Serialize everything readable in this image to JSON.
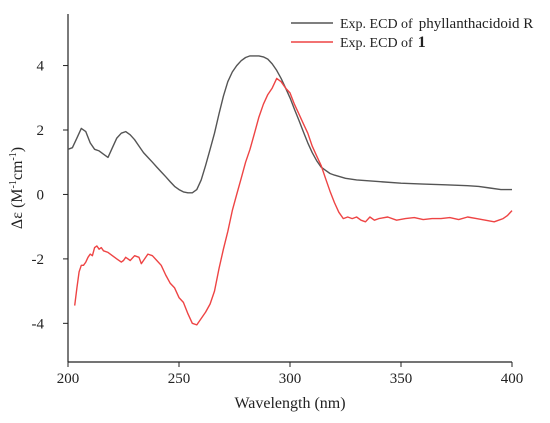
{
  "chart_data": {
    "type": "line",
    "xlabel": "Wavelength (nm)",
    "ylabel": {
      "prefix": "Δε (M",
      "sup1": "-1",
      "mid": "cm",
      "sup2": "-1",
      "suffix": ")"
    },
    "xlim": [
      200,
      400
    ],
    "ylim": [
      -5.2,
      5.6
    ],
    "x_ticks": [
      200,
      250,
      300,
      350,
      400
    ],
    "y_ticks": [
      -4,
      -2,
      0,
      2,
      4
    ],
    "grid": false,
    "legend_position": "top-right",
    "series": [
      {
        "legend_prefix": "Exp. ECD of",
        "legend_name": "phyllanthacidoid R",
        "color": "#555555",
        "points": [
          [
            200,
            1.4
          ],
          [
            202,
            1.45
          ],
          [
            204,
            1.75
          ],
          [
            206,
            2.05
          ],
          [
            208,
            1.95
          ],
          [
            210,
            1.6
          ],
          [
            212,
            1.4
          ],
          [
            214,
            1.35
          ],
          [
            216,
            1.25
          ],
          [
            218,
            1.15
          ],
          [
            220,
            1.45
          ],
          [
            222,
            1.75
          ],
          [
            224,
            1.9
          ],
          [
            226,
            1.95
          ],
          [
            228,
            1.85
          ],
          [
            230,
            1.7
          ],
          [
            232,
            1.5
          ],
          [
            234,
            1.3
          ],
          [
            236,
            1.15
          ],
          [
            238,
            1.0
          ],
          [
            240,
            0.85
          ],
          [
            242,
            0.7
          ],
          [
            244,
            0.55
          ],
          [
            246,
            0.4
          ],
          [
            248,
            0.25
          ],
          [
            250,
            0.15
          ],
          [
            252,
            0.08
          ],
          [
            254,
            0.05
          ],
          [
            256,
            0.05
          ],
          [
            258,
            0.15
          ],
          [
            260,
            0.45
          ],
          [
            262,
            0.9
          ],
          [
            264,
            1.4
          ],
          [
            266,
            1.9
          ],
          [
            268,
            2.5
          ],
          [
            270,
            3.05
          ],
          [
            272,
            3.5
          ],
          [
            274,
            3.8
          ],
          [
            276,
            4.0
          ],
          [
            278,
            4.15
          ],
          [
            280,
            4.25
          ],
          [
            282,
            4.3
          ],
          [
            284,
            4.3
          ],
          [
            286,
            4.3
          ],
          [
            288,
            4.27
          ],
          [
            290,
            4.2
          ],
          [
            292,
            4.05
          ],
          [
            294,
            3.85
          ],
          [
            296,
            3.6
          ],
          [
            298,
            3.3
          ],
          [
            300,
            3.0
          ],
          [
            302,
            2.65
          ],
          [
            304,
            2.3
          ],
          [
            306,
            1.95
          ],
          [
            308,
            1.6
          ],
          [
            310,
            1.3
          ],
          [
            312,
            1.05
          ],
          [
            314,
            0.85
          ],
          [
            316,
            0.75
          ],
          [
            318,
            0.65
          ],
          [
            320,
            0.6
          ],
          [
            325,
            0.5
          ],
          [
            330,
            0.45
          ],
          [
            340,
            0.4
          ],
          [
            350,
            0.35
          ],
          [
            360,
            0.32
          ],
          [
            370,
            0.3
          ],
          [
            380,
            0.27
          ],
          [
            385,
            0.25
          ],
          [
            390,
            0.2
          ],
          [
            395,
            0.15
          ],
          [
            400,
            0.15
          ]
        ]
      },
      {
        "legend_prefix": "Exp. ECD of",
        "legend_name": "1",
        "color": "#ee4444",
        "points": [
          [
            203,
            -3.45
          ],
          [
            204,
            -2.9
          ],
          [
            205,
            -2.4
          ],
          [
            206,
            -2.2
          ],
          [
            207,
            -2.2
          ],
          [
            208,
            -2.1
          ],
          [
            209,
            -1.95
          ],
          [
            210,
            -1.85
          ],
          [
            211,
            -1.9
          ],
          [
            212,
            -1.65
          ],
          [
            213,
            -1.6
          ],
          [
            214,
            -1.7
          ],
          [
            215,
            -1.65
          ],
          [
            216,
            -1.75
          ],
          [
            218,
            -1.8
          ],
          [
            220,
            -1.9
          ],
          [
            222,
            -2.0
          ],
          [
            224,
            -2.1
          ],
          [
            225,
            -2.05
          ],
          [
            226,
            -1.95
          ],
          [
            228,
            -2.05
          ],
          [
            230,
            -1.9
          ],
          [
            232,
            -1.95
          ],
          [
            233,
            -2.15
          ],
          [
            234,
            -2.05
          ],
          [
            236,
            -1.85
          ],
          [
            238,
            -1.9
          ],
          [
            240,
            -2.05
          ],
          [
            242,
            -2.2
          ],
          [
            244,
            -2.5
          ],
          [
            246,
            -2.75
          ],
          [
            248,
            -2.9
          ],
          [
            250,
            -3.2
          ],
          [
            252,
            -3.35
          ],
          [
            254,
            -3.7
          ],
          [
            256,
            -4.0
          ],
          [
            258,
            -4.05
          ],
          [
            260,
            -3.85
          ],
          [
            262,
            -3.65
          ],
          [
            264,
            -3.4
          ],
          [
            266,
            -3.0
          ],
          [
            268,
            -2.3
          ],
          [
            270,
            -1.7
          ],
          [
            272,
            -1.15
          ],
          [
            274,
            -0.5
          ],
          [
            276,
            0.0
          ],
          [
            278,
            0.5
          ],
          [
            280,
            1.0
          ],
          [
            282,
            1.4
          ],
          [
            284,
            1.9
          ],
          [
            286,
            2.4
          ],
          [
            288,
            2.8
          ],
          [
            290,
            3.1
          ],
          [
            292,
            3.3
          ],
          [
            294,
            3.6
          ],
          [
            296,
            3.5
          ],
          [
            298,
            3.3
          ],
          [
            300,
            3.15
          ],
          [
            302,
            2.8
          ],
          [
            304,
            2.5
          ],
          [
            306,
            2.2
          ],
          [
            308,
            1.9
          ],
          [
            310,
            1.5
          ],
          [
            312,
            1.2
          ],
          [
            314,
            0.9
          ],
          [
            316,
            0.5
          ],
          [
            318,
            0.1
          ],
          [
            320,
            -0.25
          ],
          [
            322,
            -0.55
          ],
          [
            324,
            -0.75
          ],
          [
            326,
            -0.7
          ],
          [
            328,
            -0.75
          ],
          [
            330,
            -0.7
          ],
          [
            332,
            -0.8
          ],
          [
            334,
            -0.85
          ],
          [
            336,
            -0.7
          ],
          [
            338,
            -0.8
          ],
          [
            340,
            -0.75
          ],
          [
            344,
            -0.7
          ],
          [
            348,
            -0.8
          ],
          [
            352,
            -0.75
          ],
          [
            356,
            -0.72
          ],
          [
            360,
            -0.78
          ],
          [
            364,
            -0.75
          ],
          [
            368,
            -0.75
          ],
          [
            372,
            -0.72
          ],
          [
            376,
            -0.78
          ],
          [
            380,
            -0.7
          ],
          [
            384,
            -0.75
          ],
          [
            388,
            -0.8
          ],
          [
            392,
            -0.85
          ],
          [
            394,
            -0.8
          ],
          [
            396,
            -0.75
          ],
          [
            398,
            -0.65
          ],
          [
            400,
            -0.5
          ]
        ]
      }
    ]
  }
}
